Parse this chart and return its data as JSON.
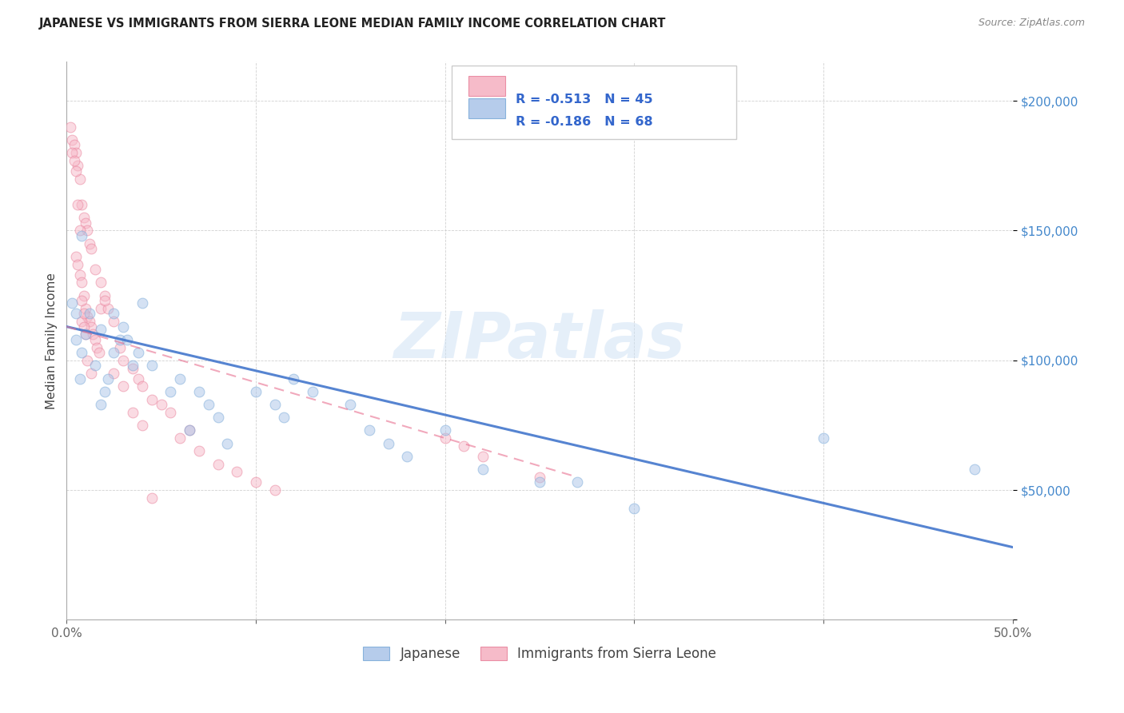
{
  "title": "JAPANESE VS IMMIGRANTS FROM SIERRA LEONE MEDIAN FAMILY INCOME CORRELATION CHART",
  "source": "Source: ZipAtlas.com",
  "ylabel": "Median Family Income",
  "xlim": [
    0.0,
    0.5
  ],
  "ylim": [
    0,
    215000
  ],
  "watermark": "ZIPatlas",
  "legend_items": [
    {
      "color": "#aac4e8",
      "label": "Japanese",
      "R": "-0.513",
      "N": "45"
    },
    {
      "color": "#f5b0c0",
      "label": "Immigrants from Sierra Leone",
      "R": "-0.186",
      "N": "68"
    }
  ],
  "blue_scatter_x": [
    0.008,
    0.005,
    0.018,
    0.005,
    0.003,
    0.012,
    0.01,
    0.008,
    0.015,
    0.007,
    0.025,
    0.03,
    0.028,
    0.025,
    0.022,
    0.02,
    0.018,
    0.04,
    0.035,
    0.032,
    0.038,
    0.045,
    0.06,
    0.055,
    0.07,
    0.075,
    0.065,
    0.08,
    0.085,
    0.1,
    0.11,
    0.115,
    0.12,
    0.13,
    0.15,
    0.16,
    0.17,
    0.18,
    0.2,
    0.22,
    0.25,
    0.27,
    0.3,
    0.4,
    0.48
  ],
  "blue_scatter_y": [
    148000,
    118000,
    112000,
    108000,
    122000,
    118000,
    110000,
    103000,
    98000,
    93000,
    118000,
    113000,
    108000,
    103000,
    93000,
    88000,
    83000,
    122000,
    98000,
    108000,
    103000,
    98000,
    93000,
    88000,
    88000,
    83000,
    73000,
    78000,
    68000,
    88000,
    83000,
    78000,
    93000,
    88000,
    83000,
    73000,
    68000,
    63000,
    73000,
    58000,
    53000,
    53000,
    43000,
    70000,
    58000
  ],
  "pink_scatter_x": [
    0.002,
    0.003,
    0.004,
    0.005,
    0.006,
    0.007,
    0.008,
    0.009,
    0.01,
    0.011,
    0.012,
    0.013,
    0.005,
    0.006,
    0.007,
    0.008,
    0.009,
    0.003,
    0.004,
    0.005,
    0.01,
    0.011,
    0.012,
    0.013,
    0.014,
    0.015,
    0.016,
    0.017,
    0.018,
    0.008,
    0.009,
    0.01,
    0.02,
    0.022,
    0.025,
    0.028,
    0.03,
    0.035,
    0.038,
    0.04,
    0.045,
    0.05,
    0.055,
    0.06,
    0.065,
    0.07,
    0.08,
    0.09,
    0.1,
    0.11,
    0.015,
    0.018,
    0.02,
    0.025,
    0.03,
    0.035,
    0.04,
    0.045,
    0.2,
    0.21,
    0.22,
    0.25,
    0.007,
    0.008,
    0.009,
    0.006,
    0.011,
    0.013
  ],
  "pink_scatter_y": [
    190000,
    185000,
    183000,
    180000,
    175000,
    170000,
    160000,
    155000,
    153000,
    150000,
    145000,
    143000,
    140000,
    137000,
    133000,
    130000,
    125000,
    180000,
    177000,
    173000,
    120000,
    117000,
    115000,
    113000,
    110000,
    108000,
    105000,
    103000,
    120000,
    115000,
    113000,
    110000,
    125000,
    120000,
    115000,
    105000,
    100000,
    97000,
    93000,
    90000,
    85000,
    83000,
    80000,
    70000,
    73000,
    65000,
    60000,
    57000,
    53000,
    50000,
    135000,
    130000,
    123000,
    95000,
    90000,
    80000,
    75000,
    47000,
    70000,
    67000,
    63000,
    55000,
    150000,
    123000,
    118000,
    160000,
    100000,
    95000
  ],
  "blue_line_x": [
    0.0,
    0.5
  ],
  "blue_line_y": [
    113000,
    28000
  ],
  "pink_line_x": [
    0.0,
    0.27
  ],
  "pink_line_y": [
    113000,
    55000
  ],
  "scatter_size": 85,
  "scatter_alpha": 0.5,
  "line_alpha": 0.9
}
